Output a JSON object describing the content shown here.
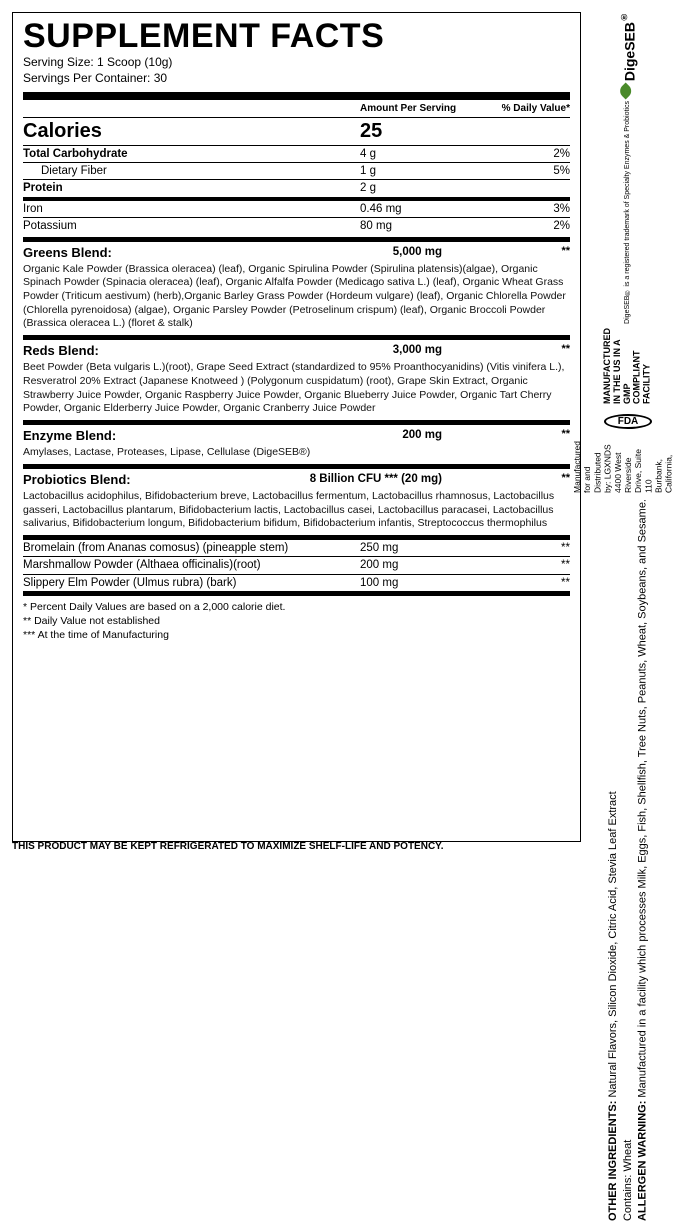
{
  "title": "SUPPLEMENT FACTS",
  "serving_size": "Serving Size: 1 Scoop (10g)",
  "servings_per": "Servings Per Container: 30",
  "header": {
    "amount": "Amount Per Serving",
    "dv": "% Daily Value*"
  },
  "calories": {
    "label": "Calories",
    "value": "25"
  },
  "macros": [
    {
      "label": "Total Carbohydrate",
      "amt": "4 g",
      "dv": "2%",
      "bold": true
    },
    {
      "label": "Dietary Fiber",
      "amt": "1 g",
      "dv": "5%",
      "indent": true
    },
    {
      "label": "Protein",
      "amt": "2 g",
      "dv": "",
      "bold": true
    }
  ],
  "minerals": [
    {
      "label": "Iron",
      "amt": "0.46 mg",
      "dv": "3%"
    },
    {
      "label": "Potassium",
      "amt": "80 mg",
      "dv": "2%"
    }
  ],
  "blends": [
    {
      "name": "Greens Blend:",
      "amt": "5,000 mg",
      "dv": "**",
      "body": "Organic Kale Powder (Brassica oleracea) (leaf), Organic Spirulina Powder (Spirulina platensis)(algae), Organic Spinach Powder (Spinacia oleracea) (leaf), Organic Alfalfa Powder (Medicago sativa L.) (leaf), Organic Wheat Grass Powder (Triticum aestivum) (herb),Organic Barley Grass Powder (Hordeum vulgare) (leaf), Organic Chlorella Powder (Chlorella pyrenoidosa) (algae), Organic Parsley Powder (Petroselinum crispum) (leaf), Organic Broccoli Powder (Brassica oleracea L.) (floret & stalk)"
    },
    {
      "name": "Reds Blend:",
      "amt": "3,000 mg",
      "dv": "**",
      "body": "Beet Powder (Beta vulgaris L.)(root), Grape Seed Extract (standardized to 95% Proanthocyanidins) (Vitis vinifera L.), Resveratrol 20% Extract (Japanese Knotweed ) (Polygonum cuspidatum) (root), Grape Skin Extract, Organic Strawberry Juice Powder, Organic Raspberry Juice Powder, Organic Blueberry Juice Powder, Organic Tart Cherry Powder, Organic Elderberry Juice Powder, Organic Cranberry Juice Powder"
    },
    {
      "name": "Enzyme Blend:",
      "amt": "200 mg",
      "dv": "**",
      "body": "Amylases, Lactase, Proteases, Lipase, Cellulase\n(DigeSEB®)"
    },
    {
      "name": "Probiotics Blend:",
      "amt": "8 Billion CFU *** (20 mg)",
      "dv": "**",
      "body": "Lactobacillus acidophilus, Bifidobacterium breve, Lactobacillus fermentum, Lactobacillus rhamnosus, Lactobacillus gasseri, Lactobacillus plantarum, Bifidobacterium lactis, Lactobacillus casei, Lactobacillus paracasei, Lactobacillus salivarius, Bifidobacterium longum, Bifidobacterium bifidum, Bifidobacterium infantis, Streptococcus thermophilus"
    }
  ],
  "extras": [
    {
      "label": "Bromelain (from Ananas comosus) (pineapple stem)",
      "amt": "250 mg",
      "dv": "**"
    },
    {
      "label": "Marshmallow Powder (Althaea officinalis)(root)",
      "amt": "200 mg",
      "dv": "**"
    },
    {
      "label": "Slippery Elm Powder (Ulmus rubra) (bark)",
      "amt": "100 mg",
      "dv": "**"
    }
  ],
  "notes": [
    "* Percent Daily Values are based on a 2,000 calorie diet.",
    "** Daily Value not established",
    "*** At the time of Manufacturing"
  ],
  "footer": "THIS PRODUCT MAY BE KEPT REFRIGERATED TO MAXIMIZE SHELF-LIFE AND POTENCY.",
  "side": {
    "other_label": "OTHER INGREDIENTS:",
    "other": " Natural Flavors, Silicon Dioxide, Citric Acid, Stevia Leaf Extract",
    "contains": "Contains: Wheat",
    "allergen_label": "ALLERGEN WARNING:",
    "allergen": " Manufactured in a facility which processes Milk, Eggs, Fish, Shellfish, Tree Nuts, Peanuts, Wheat, Soybeans, and Sesame.",
    "gmp": "MANUFACTURED IN THE US IN A GMP COMPLIANT FACILITY",
    "fda": "FDA",
    "mfr1": "Manufactured for and Distributed by: LGXNDS",
    "mfr2": "4400 West Riverside Drive, Suite 110",
    "mfr3": "Burbank, California, 91505",
    "brand": "DigeSEB",
    "brand_sub": "DigeSEB® is a registered trademark of Specialty Enzymes & Probiotics"
  }
}
